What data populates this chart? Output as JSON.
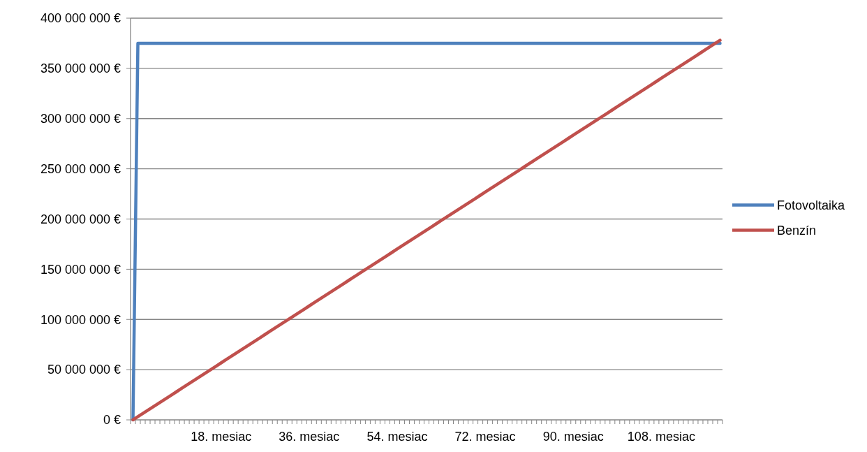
{
  "chart_data": {
    "type": "line",
    "categories": [
      null,
      null,
      null,
      null,
      null,
      null,
      null,
      null,
      null,
      null,
      null,
      null,
      null,
      null,
      null,
      null,
      null,
      null,
      "18. mesiac",
      null,
      null,
      null,
      null,
      null,
      null,
      null,
      null,
      null,
      null,
      null,
      null,
      null,
      null,
      null,
      null,
      null,
      "36. mesiac",
      null,
      null,
      null,
      null,
      null,
      null,
      null,
      null,
      null,
      null,
      null,
      null,
      null,
      null,
      null,
      null,
      null,
      "54. mesiac",
      null,
      null,
      null,
      null,
      null,
      null,
      null,
      null,
      null,
      null,
      null,
      null,
      null,
      null,
      null,
      null,
      null,
      "72. mesiac",
      null,
      null,
      null,
      null,
      null,
      null,
      null,
      null,
      null,
      null,
      null,
      null,
      null,
      null,
      null,
      null,
      null,
      "90. mesiac",
      null,
      null,
      null,
      null,
      null,
      null,
      null,
      null,
      null,
      null,
      null,
      null,
      null,
      null,
      null,
      null,
      null,
      "108. mesiac",
      null,
      null,
      null,
      null,
      null,
      null,
      null,
      null,
      null,
      null,
      null,
      null
    ],
    "series": [
      {
        "name": "Fotovoltaika",
        "color": "#4f81bd",
        "values": [
          0,
          375000000,
          375000000,
          375000000,
          375000000,
          375000000,
          375000000,
          375000000,
          375000000,
          375000000,
          375000000,
          375000000,
          375000000,
          375000000,
          375000000,
          375000000,
          375000000,
          375000000,
          375000000,
          375000000,
          375000000,
          375000000,
          375000000,
          375000000,
          375000000,
          375000000,
          375000000,
          375000000,
          375000000,
          375000000,
          375000000,
          375000000,
          375000000,
          375000000,
          375000000,
          375000000,
          375000000,
          375000000,
          375000000,
          375000000,
          375000000,
          375000000,
          375000000,
          375000000,
          375000000,
          375000000,
          375000000,
          375000000,
          375000000,
          375000000,
          375000000,
          375000000,
          375000000,
          375000000,
          375000000,
          375000000,
          375000000,
          375000000,
          375000000,
          375000000,
          375000000,
          375000000,
          375000000,
          375000000,
          375000000,
          375000000,
          375000000,
          375000000,
          375000000,
          375000000,
          375000000,
          375000000,
          375000000,
          375000000,
          375000000,
          375000000,
          375000000,
          375000000,
          375000000,
          375000000,
          375000000,
          375000000,
          375000000,
          375000000,
          375000000,
          375000000,
          375000000,
          375000000,
          375000000,
          375000000,
          375000000,
          375000000,
          375000000,
          375000000,
          375000000,
          375000000,
          375000000,
          375000000,
          375000000,
          375000000,
          375000000,
          375000000,
          375000000,
          375000000,
          375000000,
          375000000,
          375000000,
          375000000,
          375000000,
          375000000,
          375000000,
          375000000,
          375000000,
          375000000,
          375000000,
          375000000,
          375000000,
          375000000,
          375000000,
          375000000,
          375000000
        ]
      },
      {
        "name": "Benzín",
        "color": "#c0504d",
        "values": [
          0,
          3150000,
          6300000,
          9450000,
          12600000,
          15750000,
          18900000,
          22050000,
          25200000,
          28350000,
          31500000,
          34650000,
          37800000,
          40950000,
          44100000,
          47250000,
          50400000,
          53550000,
          56700000,
          59850000,
          63000000,
          66150000,
          69300000,
          72450000,
          75600000,
          78750000,
          81900000,
          85050000,
          88200000,
          91350000,
          94500000,
          97650000,
          100800000,
          103950000,
          107100000,
          110250000,
          113400000,
          116550000,
          119700000,
          122850000,
          126000000,
          129150000,
          132300000,
          135450000,
          138600000,
          141750000,
          144900000,
          148050000,
          151200000,
          154350000,
          157500000,
          160650000,
          163800000,
          166950000,
          170100000,
          173250000,
          176400000,
          179550000,
          182700000,
          185850000,
          189000000,
          192150000,
          195300000,
          198450000,
          201600000,
          204750000,
          207900000,
          211050000,
          214200000,
          217350000,
          220500000,
          223650000,
          226800000,
          229950000,
          233100000,
          236250000,
          239400000,
          242550000,
          245700000,
          248850000,
          252000000,
          255150000,
          258300000,
          261450000,
          264600000,
          267750000,
          270900000,
          274050000,
          277200000,
          280350000,
          283500000,
          286650000,
          289800000,
          292950000,
          296100000,
          299250000,
          302400000,
          305550000,
          308700000,
          311850000,
          315000000,
          318150000,
          321300000,
          324450000,
          327600000,
          330750000,
          333900000,
          337050000,
          340200000,
          343350000,
          346500000,
          349650000,
          352800000,
          355950000,
          359100000,
          362250000,
          365400000,
          368550000,
          371700000,
          374850000,
          378000000
        ]
      }
    ],
    "ylim": [
      0,
      400000000
    ],
    "yticks": [
      {
        "value": 0,
        "label": "0 €"
      },
      {
        "value": 50000000,
        "label": "50 000 000 €"
      },
      {
        "value": 100000000,
        "label": "100 000 000 €"
      },
      {
        "value": 150000000,
        "label": "150 000 000 €"
      },
      {
        "value": 200000000,
        "label": "200 000 000 €"
      },
      {
        "value": 250000000,
        "label": "250 000 000 €"
      },
      {
        "value": 300000000,
        "label": "300 000 000 €"
      },
      {
        "value": 350000000,
        "label": "350 000 000 €"
      },
      {
        "value": 400000000,
        "label": "400 000 000 €"
      }
    ],
    "grid": "y",
    "legend": "right",
    "marker": "none",
    "line_style": "solid"
  }
}
